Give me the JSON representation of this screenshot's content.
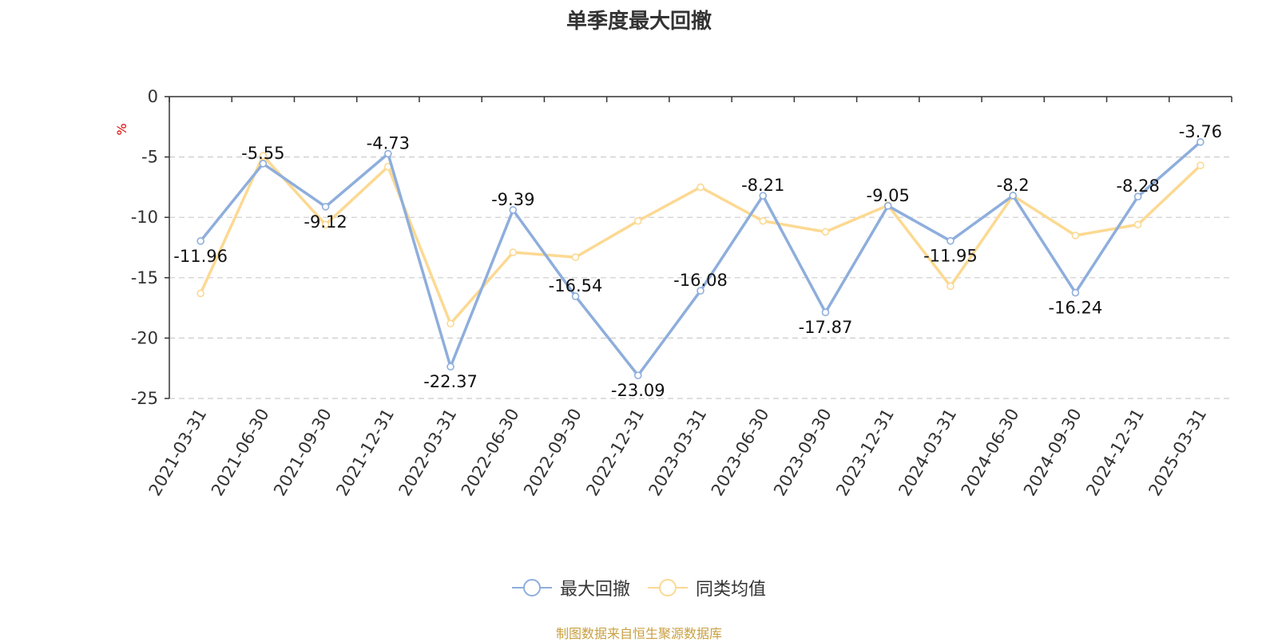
{
  "chart_data": {
    "type": "line",
    "title": "单季度最大回撤",
    "ylabel": "%",
    "ylim": [
      -25,
      0
    ],
    "yticks": [
      0,
      -5,
      -10,
      -15,
      -20,
      -25
    ],
    "grid": true,
    "legend_position": "bottom-center",
    "categories": [
      "2021-03-31",
      "2021-06-30",
      "2021-09-30",
      "2021-12-31",
      "2022-03-31",
      "2022-06-30",
      "2022-09-30",
      "2022-12-31",
      "2023-03-31",
      "2023-06-30",
      "2023-09-30",
      "2023-12-31",
      "2024-03-31",
      "2024-06-30",
      "2024-09-30",
      "2024-12-31",
      "2025-03-31"
    ],
    "series": [
      {
        "name": "最大回撤",
        "color": "#8eaedc",
        "labels": true,
        "values": [
          -11.96,
          -5.55,
          -9.12,
          -4.73,
          -22.37,
          -9.39,
          -16.54,
          -23.09,
          -16.08,
          -8.21,
          -17.87,
          -9.05,
          -11.95,
          -8.2,
          -16.24,
          -8.28,
          -3.76
        ],
        "value_labels": [
          "-11.96",
          "-5.55",
          "-9.12",
          "-4.73",
          "-22.37",
          "-9.39",
          "-16.54",
          "-23.09",
          "-16.08",
          "-8.21",
          "-17.87",
          "-9.05",
          "-11.95",
          "-8.2",
          "-16.24",
          "-8.28",
          "-3.76"
        ]
      },
      {
        "name": "同类均值",
        "color": "#fcd992",
        "labels": false,
        "values": [
          -16.3,
          -4.9,
          -10.6,
          -5.8,
          -18.8,
          -12.9,
          -13.3,
          -10.3,
          -7.5,
          -10.3,
          -11.2,
          -9.0,
          -15.7,
          -8.2,
          -11.5,
          -10.6,
          -5.7
        ]
      }
    ]
  },
  "source": "制图数据来自恒生聚源数据库",
  "colors": {
    "axis": "#333333",
    "grid": "#cccccc",
    "ylabel": "#e00000"
  }
}
